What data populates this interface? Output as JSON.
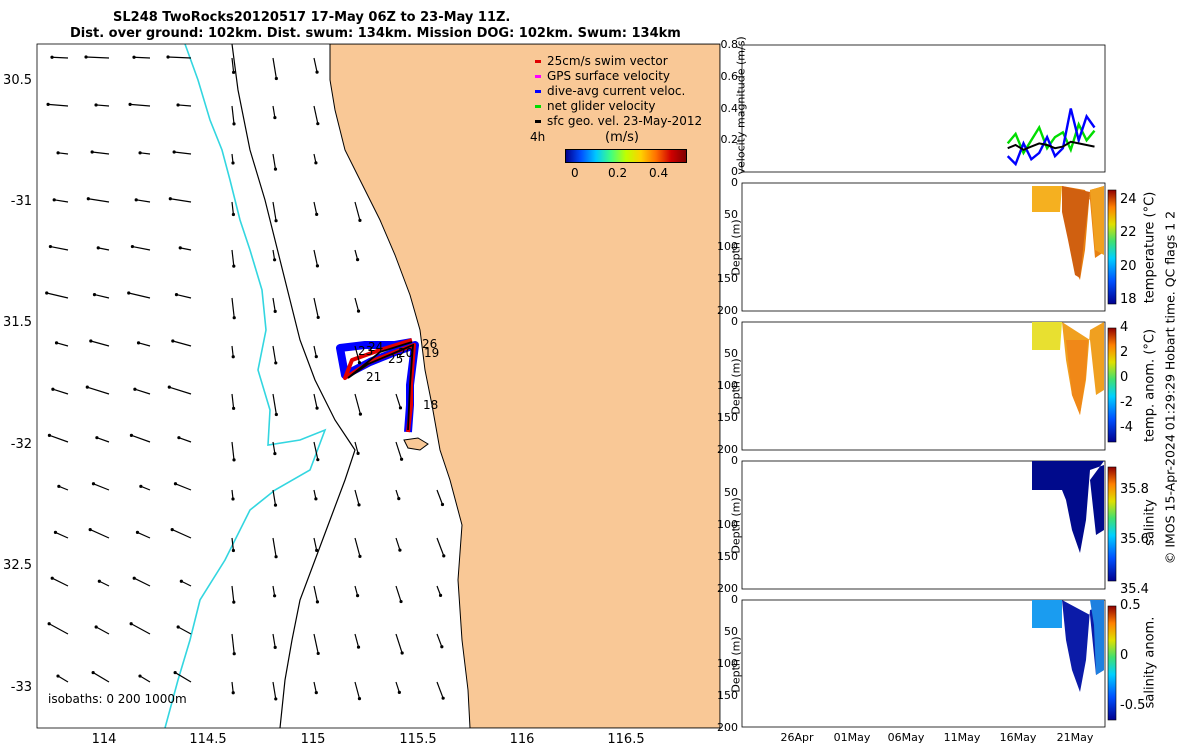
{
  "titles": {
    "line1": "SL248 TwoRocks20120517 17-May 06Z to 23-May 11Z.",
    "line2": "Dist. over ground: 102km. Dist. swum: 134km. Mission DOG: 102km. Swum: 134km"
  },
  "credit": "© IMOS 15-Apr-2024 01:29:29 Hobart time. QC flags 1  2",
  "map": {
    "lon_ticks": [
      "114",
      "114.5",
      "115",
      "115.5",
      "116",
      "116.5"
    ],
    "lat_ticks": [
      "30.5",
      "-31",
      "31.5",
      "-32",
      "32.5",
      "-33"
    ],
    "isobath_label": "isobaths: 0   200  1000m",
    "legend": [
      {
        "label": "25cm/s swim vector",
        "color": "#e00000"
      },
      {
        "label": "GPS surface velocity",
        "color": "#ff00ff"
      },
      {
        "label": "dive-avg current veloc.",
        "color": "#0000ff"
      },
      {
        "label": "net glider velocity",
        "color": "#00dd00"
      },
      {
        "label": "sfc geo. vel. 23-May-2012",
        "color": "#000000"
      }
    ],
    "legend_time": "4h",
    "colorbar_title": "(m/s)",
    "colorbar_ticks": [
      "0",
      "0.2",
      "0.4"
    ],
    "day_labels": [
      "26",
      "24",
      "23",
      "20",
      "25",
      "19",
      "21",
      "18"
    ],
    "land_color": "#f9c896",
    "isobath_200_color": "#33d6e0"
  },
  "panels": {
    "x_ticks": [
      "26Apr",
      "01May",
      "06May",
      "11May",
      "16May",
      "21May"
    ],
    "velocity": {
      "ylabel": "velocity magnitude (m/s)",
      "y_ticks": [
        "0",
        "0.2",
        "0.4",
        "0.6",
        "0.8"
      ]
    },
    "depth_ticks": [
      "0",
      "50",
      "100",
      "150",
      "200"
    ],
    "depth_ylabel": "Depth (m)",
    "temperature": {
      "cb_label": "temperature (°C)",
      "cb_ticks": [
        "24",
        "22",
        "20",
        "18"
      ]
    },
    "temp_anom": {
      "cb_label": "temp. anom. (°C)",
      "cb_ticks": [
        "4",
        "2",
        "0",
        "-2",
        "-4"
      ]
    },
    "salinity": {
      "cb_label": "salinity",
      "cb_ticks": [
        "35.8",
        "35.6",
        "35.4"
      ]
    },
    "sal_anom": {
      "cb_label": "salinity anom.",
      "cb_ticks": [
        "0.5",
        "0",
        "-0.5"
      ]
    }
  },
  "chart_data": [
    {
      "type": "scatter",
      "xlim": [
        113.65,
        116.95
      ],
      "ylim": [
        -33.2,
        -30.35
      ],
      "track": {
        "lon": [
          115.47,
          115.49,
          115.45,
          115.3,
          115.15,
          115.18,
          115.4,
          115.49
        ],
        "lat": [
          -31.95,
          -31.8,
          -31.7,
          -31.68,
          -31.73,
          -31.6,
          -31.58,
          -31.57
        ]
      }
    },
    {
      "type": "line",
      "ylim": [
        0,
        0.8
      ],
      "series": [
        {
          "x": [
            16.2,
            16.8,
            17.4,
            18.0,
            18.6,
            19.2,
            19.8,
            20.4,
            21.0,
            21.6,
            22.2,
            22.8
          ],
          "values": [
            0.18,
            0.24,
            0.12,
            0.2,
            0.28,
            0.15,
            0.22,
            0.25,
            0.14,
            0.3,
            0.2,
            0.26
          ],
          "color": "#00dd00"
        },
        {
          "x": [
            16.2,
            16.8,
            17.4,
            18.0,
            18.6,
            19.2,
            19.8,
            20.4,
            21.0,
            21.6,
            22.2,
            22.8
          ],
          "values": [
            0.1,
            0.05,
            0.18,
            0.08,
            0.12,
            0.22,
            0.1,
            0.15,
            0.4,
            0.2,
            0.35,
            0.28
          ],
          "color": "#0000ff"
        },
        {
          "x": [
            16.2,
            16.8,
            17.4,
            18.0,
            18.6,
            19.2,
            19.8,
            20.4,
            21.0,
            21.6,
            22.2,
            22.8
          ],
          "values": [
            0.15,
            0.17,
            0.14,
            0.16,
            0.18,
            0.17,
            0.15,
            0.16,
            0.19,
            0.18,
            0.17,
            0.16
          ],
          "color": "#000000"
        }
      ]
    }
  ]
}
